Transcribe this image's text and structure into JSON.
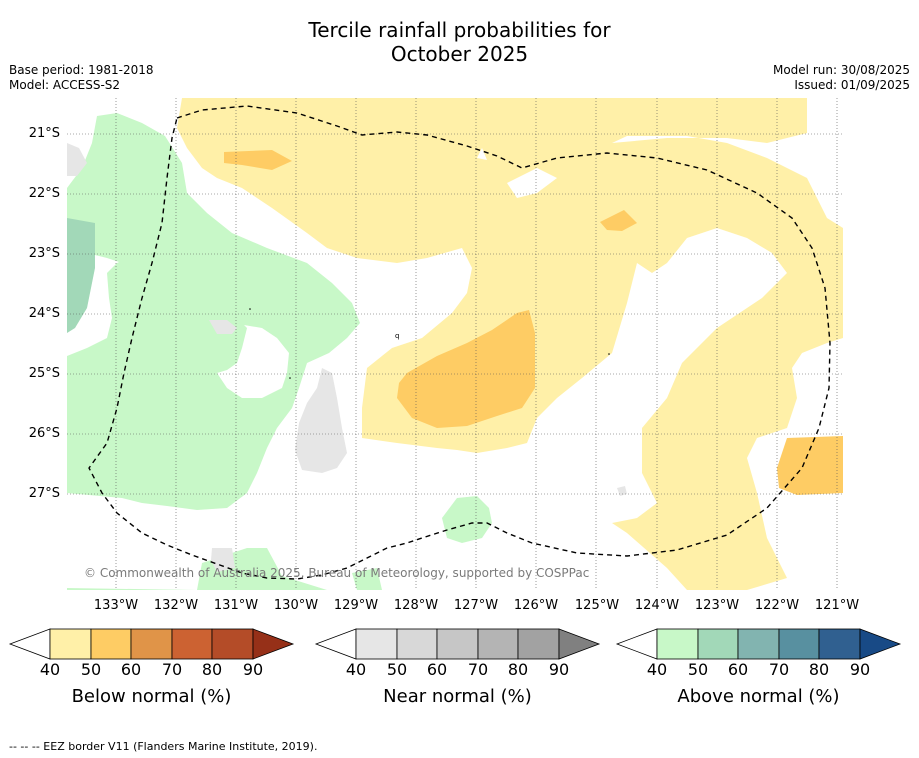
{
  "title_line1": "Tercile rainfall probabilities for",
  "title_line2": "October 2025",
  "base_period": "Base period: 1981-2018",
  "model": "Model: ACCESS-S2",
  "model_run": "Model run: 30/08/2025",
  "issued": "Issued: 01/09/2025",
  "copyright": "© Commonwealth of Australia 2025, Bureau of Meteorology, supported by COSPPac",
  "lat_labels": [
    "21°S",
    "22°S",
    "23°S",
    "24°S",
    "25°S",
    "26°S",
    "27°S"
  ],
  "lon_labels": [
    "133°W",
    "132°W",
    "131°W",
    "130°W",
    "129°W",
    "128°W",
    "127°W",
    "126°W",
    "125°W",
    "124°W",
    "123°W",
    "122°W",
    "121°W"
  ],
  "colorbars": [
    {
      "title": "Below normal (%)",
      "ticks": [
        "40",
        "50",
        "60",
        "70",
        "80",
        "90"
      ],
      "colors": [
        "#fff0a8",
        "#fecc64",
        "#e09448",
        "#cc6232",
        "#b44c28",
        "#963018"
      ]
    },
    {
      "title": "Near normal (%)",
      "ticks": [
        "40",
        "50",
        "60",
        "70",
        "80",
        "90"
      ],
      "colors": [
        "#e6e6e6",
        "#d8d8d8",
        "#c6c6c6",
        "#b4b4b4",
        "#a2a2a2",
        "#808080"
      ]
    },
    {
      "title": "Above normal (%)",
      "ticks": [
        "40",
        "50",
        "60",
        "70",
        "80",
        "90"
      ],
      "colors": [
        "#c8f8c8",
        "#a2d8b8",
        "#82b4b0",
        "#5890a0",
        "#306090",
        "#184a86"
      ]
    }
  ],
  "legend_note": "--  --  -- EEZ border V11 (Flanders Marine Institute, 2019)."
}
